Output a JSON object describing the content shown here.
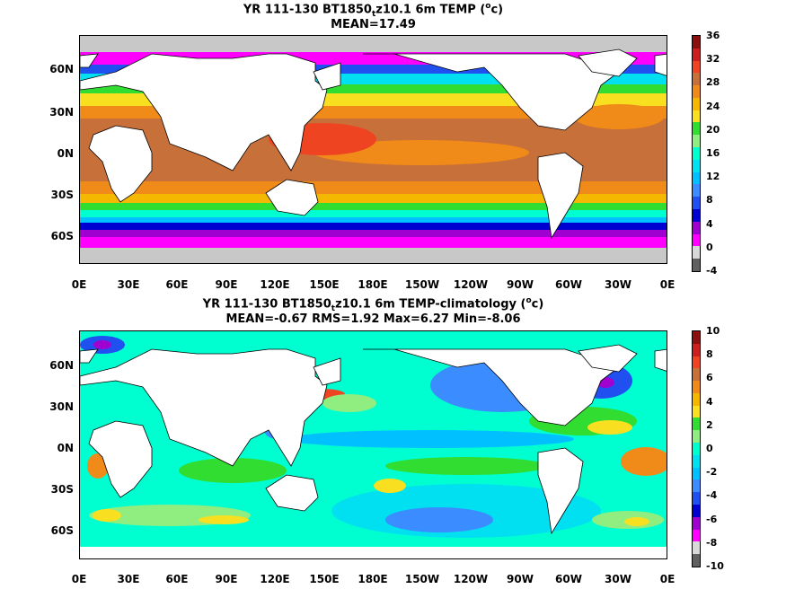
{
  "panel_top": {
    "title_prefix": "YR 111-130 BT1850",
    "title_sub": "t",
    "title_mid": "z10.1 6m TEMP (",
    "title_sup": "o",
    "title_end": "c)",
    "stats": "MEAN=17.49",
    "colorbar_labels": [
      "36",
      "32",
      "28",
      "24",
      "20",
      "16",
      "12",
      "8",
      "4",
      "0",
      "-4"
    ],
    "colorbar_colors": [
      "#8b1010",
      "#cc1f1f",
      "#ee4422",
      "#c8703a",
      "#f08a18",
      "#f5b800",
      "#f8e020",
      "#30dd30",
      "#90ee80",
      "#00ffd0",
      "#00e0f0",
      "#00c0ff",
      "#3a8cff",
      "#2050f0",
      "#0000d0",
      "#a000d0",
      "#ff00ff",
      "#d8d8d8",
      "#606060"
    ]
  },
  "panel_bottom": {
    "title_prefix": "YR 111-130 BT1850",
    "title_sub": "t",
    "title_mid": "z10.1 6m TEMP-climatology (",
    "title_sup": "o",
    "title_end": "c)",
    "stats": "MEAN=-0.67   RMS=1.92   Max=6.27   Min=-8.06",
    "colorbar_labels": [
      "10",
      "8",
      "6",
      "4",
      "2",
      "0",
      "-2",
      "-4",
      "-6",
      "-8",
      "-10"
    ],
    "colorbar_colors": [
      "#8b1010",
      "#cc1f1f",
      "#ee4422",
      "#c8703a",
      "#f08a18",
      "#f5b800",
      "#f8e020",
      "#30dd30",
      "#90ee80",
      "#00ffd0",
      "#00e0f0",
      "#00c0ff",
      "#3a8cff",
      "#2050f0",
      "#0000d0",
      "#a000d0",
      "#ff00ff",
      "#d8d8d8",
      "#606060"
    ]
  },
  "lat_labels": [
    "60N",
    "30N",
    "0N",
    "30S",
    "60S"
  ],
  "lon_labels": [
    "0E",
    "30E",
    "60E",
    "90E",
    "120E",
    "150E",
    "180E",
    "150W",
    "120W",
    "90W",
    "60W",
    "30W",
    "0E"
  ]
}
